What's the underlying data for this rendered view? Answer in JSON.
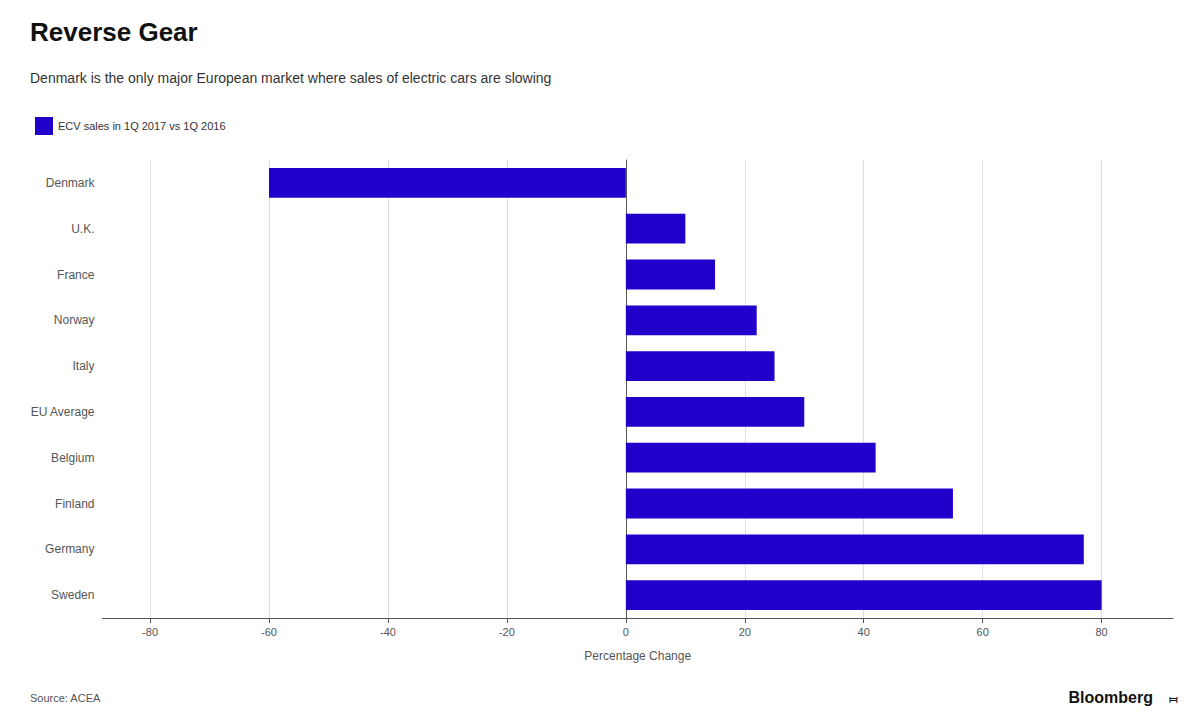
{
  "chart_data": {
    "type": "bar",
    "orientation": "horizontal",
    "title": "Reverse Gear",
    "subtitle": "Denmark is the only major European market where sales of electric cars are slowing",
    "xlabel": "Percentage Change",
    "source": "Source: ACEA",
    "annotations": [
      "Bloomberg",
      "⧦"
    ],
    "categories": [
      "Denmark",
      "U.K.",
      "France",
      "Norway",
      "Italy",
      "EU Average",
      "Belgium",
      "Finland",
      "Germany",
      "Sweden"
    ],
    "series": [
      {
        "name": "ECV sales in 1Q 2017 vs 1Q 2016",
        "color": "#2200CC",
        "values": [
          -60,
          10,
          15,
          22,
          25,
          30,
          42,
          55,
          77,
          80
        ]
      }
    ],
    "xlim": [
      -88,
      92
    ],
    "xticks": [
      -80,
      -60,
      -40,
      -20,
      0,
      20,
      40,
      60,
      80
    ],
    "grid": true,
    "legend": "upper left"
  }
}
